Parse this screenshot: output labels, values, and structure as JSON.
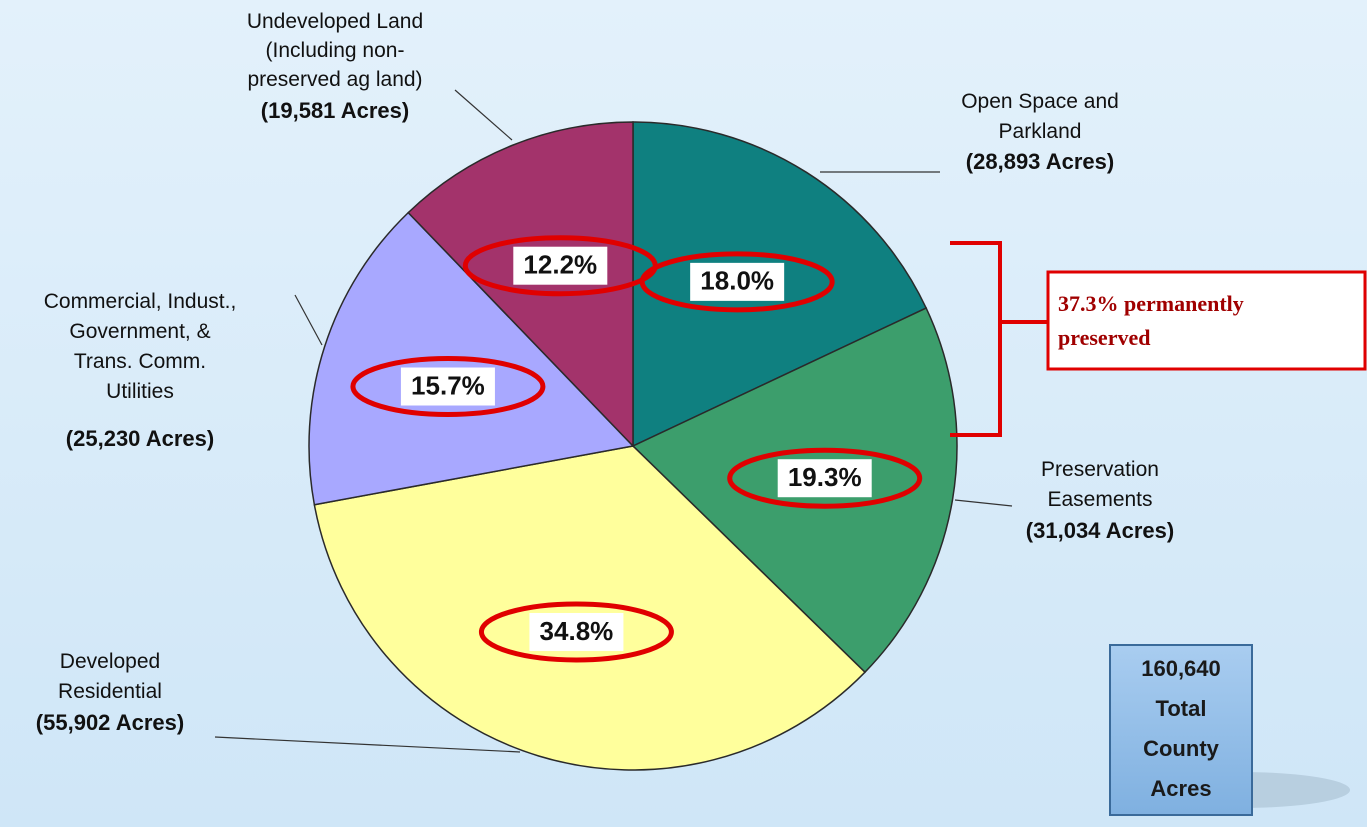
{
  "chart_data": {
    "type": "pie",
    "categories": [
      "Open Space and\nParkland",
      "Preservation\nEasements",
      "Developed\nResidential",
      "Commercial, Indust.,\nGovernment, &\nTrans. Comm.\nUtilities",
      "Undeveloped Land\n(Including non-\npreserved ag land)"
    ],
    "values": [
      18,
      19.3,
      34.8,
      15.7,
      12.2
    ],
    "value_labels": [
      "18.0%",
      "19.3%",
      "34.8%",
      "15.7%",
      "12.2%"
    ],
    "acre_labels": [
      "(28,893 Acres)",
      "(31,034 Acres)",
      "(55,902 Acres)",
      "(25,230 Acres)",
      "(19,581 Acres)"
    ],
    "colors": [
      "#0f8080",
      "#3c9e6c",
      "#ffff9c",
      "#a8a8ff",
      "#a3336b"
    ],
    "annotation": "37.3% permanently\npreserved",
    "total_text": "160,640\nTotal\nCounty\nAcres"
  }
}
